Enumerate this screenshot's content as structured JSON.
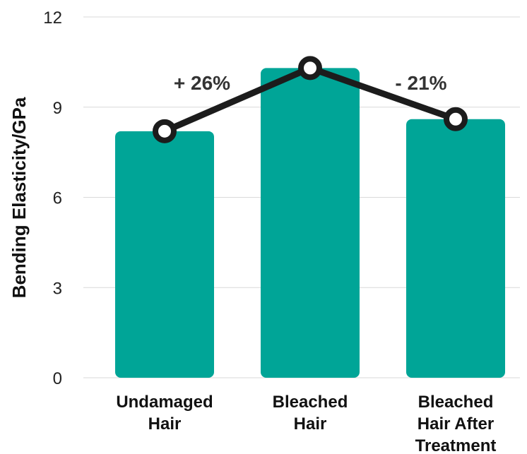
{
  "chart_data": {
    "type": "bar",
    "categories": [
      [
        "Undamaged",
        "Hair"
      ],
      [
        "Bleached",
        "Hair"
      ],
      [
        "Bleached",
        "Hair After",
        "Treatment"
      ]
    ],
    "series": [
      {
        "values": [
          8.2,
          10.3,
          8.6
        ]
      }
    ],
    "line_overlay": {
      "values": [
        8.2,
        10.3,
        8.6
      ]
    },
    "annotations": [
      "+ 26%",
      "- 21%"
    ],
    "title": "",
    "xlabel": "",
    "ylabel": "Bending Elasticity/GPa",
    "ylim": [
      0,
      12
    ],
    "yticks": [
      0,
      3,
      6,
      9,
      12
    ],
    "grid": true,
    "colors": {
      "bar": "#00a597",
      "line": "#1c1c1c",
      "marker_fill": "#ffffff",
      "grid": "#d9d9d9"
    }
  }
}
